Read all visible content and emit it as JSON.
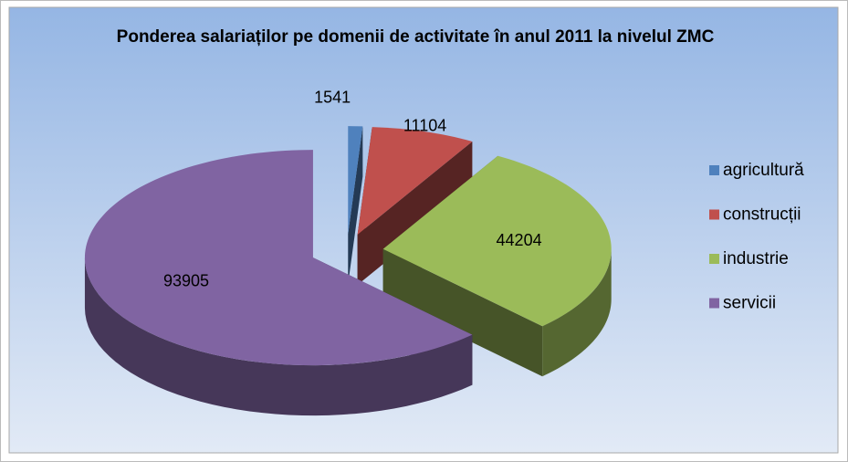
{
  "chart_data": {
    "type": "pie",
    "style": "3d-exploded",
    "title": "Ponderea salariaților pe domenii de activitate în anul 2011 la nivelul ZMC",
    "categories": [
      "agricultură",
      "construcții",
      "industrie",
      "servicii"
    ],
    "values": [
      1541,
      11104,
      44204,
      93905
    ],
    "colors": [
      "#4f81bd",
      "#c0504d",
      "#9bbb59",
      "#8064a2"
    ],
    "legend": "right"
  }
}
